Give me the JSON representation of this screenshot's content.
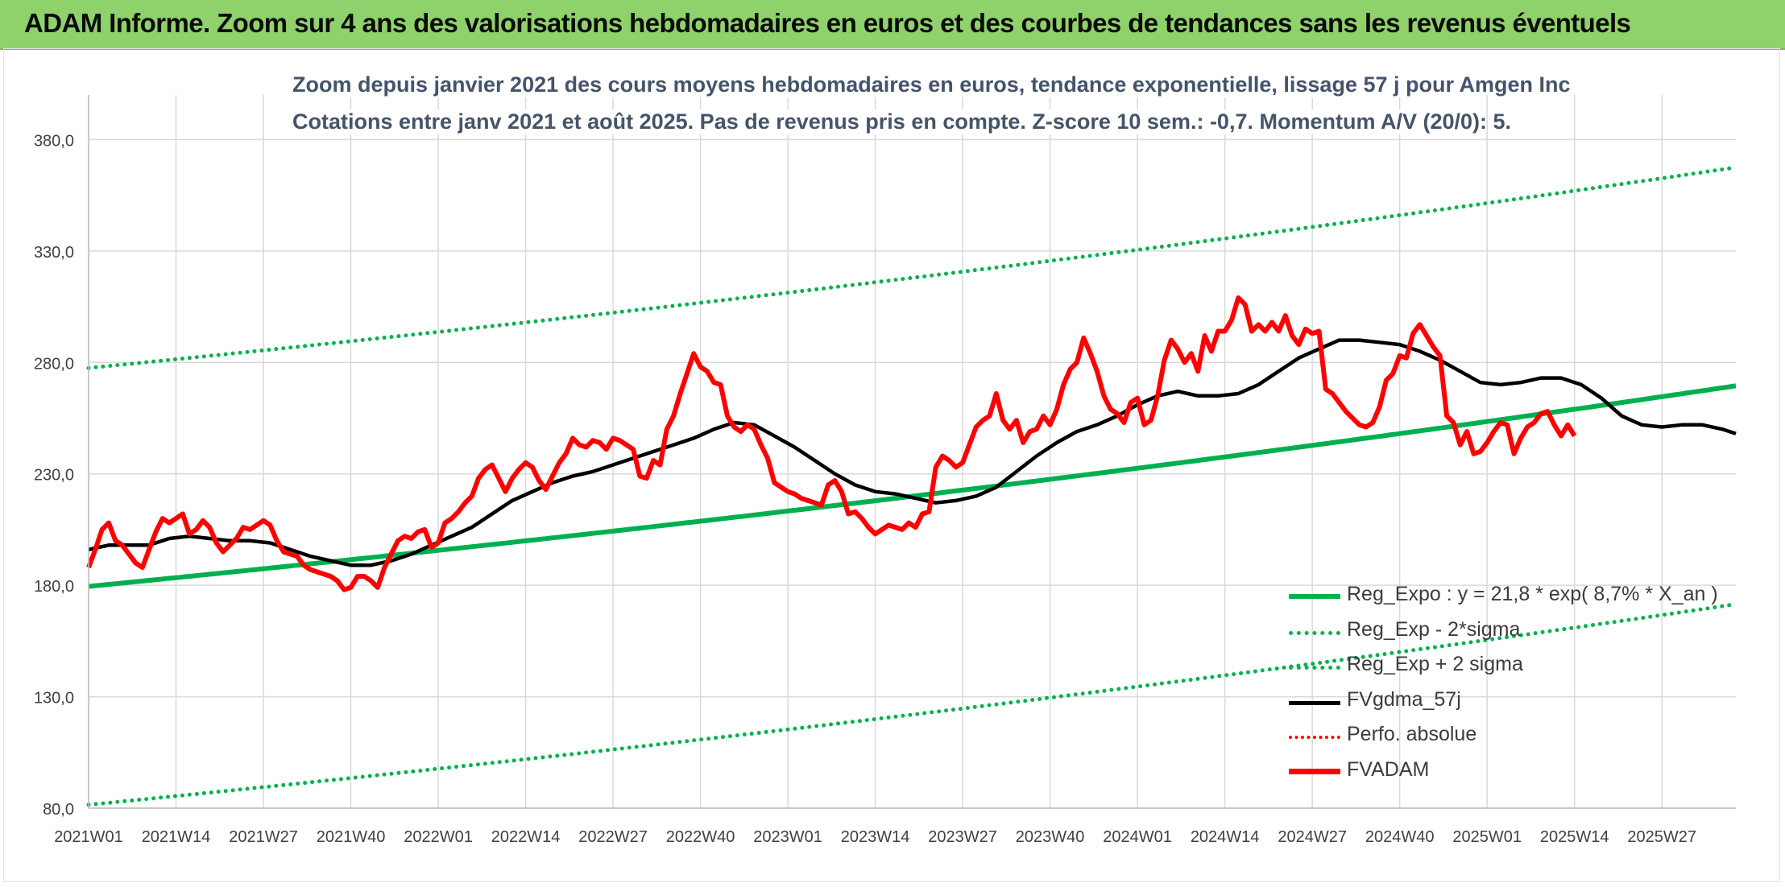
{
  "banner": {
    "title": "ADAM Informe. Zoom sur 4 ans des valorisations hebdomadaires en euros et des courbes de tendances sans les revenus éventuels"
  },
  "chart_data": {
    "type": "line",
    "title": "Zoom depuis janvier 2021 des cours moyens hebdomadaires en euros, tendance exponentielle, lissage 57 j pour Amgen Inc",
    "subtitle": "Cotations entre janv 2021 et août 2025. Pas de revenus pris en compte. Z-score 10 sem.: -0,7. Momentum A/V (20/0): 5.",
    "ylim": [
      80,
      400
    ],
    "y_ticks": [
      "380,0",
      "330,0",
      "280,0",
      "230,0",
      "180,0",
      "130,0",
      "80,0"
    ],
    "y_tick_values": [
      380,
      330,
      280,
      230,
      180,
      130,
      80
    ],
    "x_ticks": [
      "2021W01",
      "2021W14",
      "2021W27",
      "2021W40",
      "2022W01",
      "2022W14",
      "2022W27",
      "2022W40",
      "2023W01",
      "2023W14",
      "2023W27",
      "2023W40",
      "2024W01",
      "2024W14",
      "2024W27",
      "2024W40",
      "2025W01",
      "2025W14",
      "2025W27"
    ],
    "x_tick_weeks": [
      0,
      13,
      26,
      39,
      52,
      65,
      78,
      91,
      104,
      117,
      130,
      143,
      156,
      169,
      182,
      195,
      208,
      221,
      234
    ],
    "weeks_total": 245,
    "grid": true,
    "legend_position": "bottom-right",
    "colors": {
      "reg_expo": "#00b050",
      "sigma": "#00b050",
      "fvgdma": "#000000",
      "perfo": "#ff0000",
      "fvadam": "#ff0000"
    },
    "regression": {
      "formula": "y = 21,8 * exp( 8,7% * X_an )",
      "start": 179.5,
      "end": 269.5,
      "sigma_offset": 98,
      "upper_cap": 400
    },
    "series": [
      {
        "name": "Reg_Expo : y = 21,8 * exp( 8,7% *  X_an )",
        "key": "reg_expo"
      },
      {
        "name": "Reg_Exp - 2*sigma",
        "key": "reg_lower"
      },
      {
        "name": "Reg_Exp + 2 sigma",
        "key": "reg_upper"
      },
      {
        "name": "FVgdma_57j",
        "key": "fvgdma",
        "points": [
          [
            0,
            196
          ],
          [
            3,
            198
          ],
          [
            6,
            198
          ],
          [
            9,
            198
          ],
          [
            12,
            201
          ],
          [
            15,
            202
          ],
          [
            18,
            201
          ],
          [
            21,
            200
          ],
          [
            24,
            200
          ],
          [
            27,
            199
          ],
          [
            30,
            196
          ],
          [
            33,
            193
          ],
          [
            36,
            191
          ],
          [
            39,
            189
          ],
          [
            42,
            189
          ],
          [
            45,
            191
          ],
          [
            48,
            194
          ],
          [
            51,
            198
          ],
          [
            54,
            202
          ],
          [
            57,
            206
          ],
          [
            60,
            212
          ],
          [
            63,
            218
          ],
          [
            66,
            222
          ],
          [
            69,
            226
          ],
          [
            72,
            229
          ],
          [
            75,
            231
          ],
          [
            78,
            234
          ],
          [
            81,
            237
          ],
          [
            84,
            240
          ],
          [
            87,
            243
          ],
          [
            90,
            246
          ],
          [
            93,
            250
          ],
          [
            96,
            253
          ],
          [
            99,
            252
          ],
          [
            102,
            247
          ],
          [
            105,
            242
          ],
          [
            108,
            236
          ],
          [
            111,
            230
          ],
          [
            114,
            225
          ],
          [
            117,
            222
          ],
          [
            120,
            221
          ],
          [
            123,
            219
          ],
          [
            126,
            217
          ],
          [
            129,
            218
          ],
          [
            132,
            220
          ],
          [
            135,
            224
          ],
          [
            138,
            231
          ],
          [
            141,
            238
          ],
          [
            144,
            244
          ],
          [
            147,
            249
          ],
          [
            150,
            252
          ],
          [
            153,
            256
          ],
          [
            156,
            261
          ],
          [
            159,
            265
          ],
          [
            162,
            267
          ],
          [
            165,
            265
          ],
          [
            168,
            265
          ],
          [
            171,
            266
          ],
          [
            174,
            270
          ],
          [
            177,
            276
          ],
          [
            180,
            282
          ],
          [
            183,
            286
          ],
          [
            186,
            290
          ],
          [
            189,
            290
          ],
          [
            192,
            289
          ],
          [
            195,
            288
          ],
          [
            198,
            285
          ],
          [
            201,
            281
          ],
          [
            204,
            276
          ],
          [
            207,
            271
          ],
          [
            210,
            270
          ],
          [
            213,
            271
          ],
          [
            216,
            273
          ],
          [
            219,
            273
          ],
          [
            222,
            270
          ],
          [
            225,
            264
          ],
          [
            228,
            256
          ],
          [
            231,
            252
          ],
          [
            234,
            251
          ],
          [
            237,
            252
          ],
          [
            240,
            252
          ],
          [
            243,
            250
          ],
          [
            245,
            248
          ]
        ]
      },
      {
        "name": "Perfo. absolue",
        "key": "perfo"
      },
      {
        "name": "FVADAM",
        "key": "fvadam",
        "points": [
          [
            0,
            188
          ],
          [
            1,
            196
          ],
          [
            2,
            205
          ],
          [
            3,
            208
          ],
          [
            4,
            200
          ],
          [
            5,
            198
          ],
          [
            6,
            194
          ],
          [
            7,
            190
          ],
          [
            8,
            188
          ],
          [
            9,
            196
          ],
          [
            10,
            204
          ],
          [
            11,
            210
          ],
          [
            12,
            208
          ],
          [
            13,
            210
          ],
          [
            14,
            212
          ],
          [
            15,
            203
          ],
          [
            16,
            205
          ],
          [
            17,
            209
          ],
          [
            18,
            206
          ],
          [
            19,
            199
          ],
          [
            20,
            195
          ],
          [
            21,
            198
          ],
          [
            22,
            201
          ],
          [
            23,
            206
          ],
          [
            24,
            205
          ],
          [
            25,
            207
          ],
          [
            26,
            209
          ],
          [
            27,
            207
          ],
          [
            28,
            200
          ],
          [
            29,
            195
          ],
          [
            30,
            194
          ],
          [
            31,
            193
          ],
          [
            32,
            189
          ],
          [
            33,
            187
          ],
          [
            34,
            186
          ],
          [
            35,
            185
          ],
          [
            36,
            184
          ],
          [
            37,
            182
          ],
          [
            38,
            178
          ],
          [
            39,
            179
          ],
          [
            40,
            184
          ],
          [
            41,
            184
          ],
          [
            42,
            182
          ],
          [
            43,
            179
          ],
          [
            44,
            188
          ],
          [
            45,
            194
          ],
          [
            46,
            200
          ],
          [
            47,
            202
          ],
          [
            48,
            201
          ],
          [
            49,
            204
          ],
          [
            50,
            205
          ],
          [
            51,
            197
          ],
          [
            52,
            199
          ],
          [
            53,
            208
          ],
          [
            54,
            210
          ],
          [
            55,
            213
          ],
          [
            56,
            217
          ],
          [
            57,
            220
          ],
          [
            58,
            228
          ],
          [
            59,
            232
          ],
          [
            60,
            234
          ],
          [
            61,
            228
          ],
          [
            62,
            222
          ],
          [
            63,
            228
          ],
          [
            64,
            232
          ],
          [
            65,
            235
          ],
          [
            66,
            233
          ],
          [
            67,
            227
          ],
          [
            68,
            223
          ],
          [
            69,
            229
          ],
          [
            70,
            235
          ],
          [
            71,
            239
          ],
          [
            72,
            246
          ],
          [
            73,
            243
          ],
          [
            74,
            242
          ],
          [
            75,
            245
          ],
          [
            76,
            244
          ],
          [
            77,
            241
          ],
          [
            78,
            246
          ],
          [
            79,
            245
          ],
          [
            80,
            243
          ],
          [
            81,
            241
          ],
          [
            82,
            229
          ],
          [
            83,
            228
          ],
          [
            84,
            236
          ],
          [
            85,
            234
          ],
          [
            86,
            250
          ],
          [
            87,
            256
          ],
          [
            88,
            266
          ],
          [
            89,
            275
          ],
          [
            90,
            284
          ],
          [
            91,
            278
          ],
          [
            92,
            276
          ],
          [
            93,
            271
          ],
          [
            94,
            270
          ],
          [
            95,
            256
          ],
          [
            96,
            251
          ],
          [
            97,
            249
          ],
          [
            98,
            252
          ],
          [
            99,
            250
          ],
          [
            100,
            243
          ],
          [
            101,
            237
          ],
          [
            102,
            226
          ],
          [
            103,
            224
          ],
          [
            104,
            222
          ],
          [
            105,
            221
          ],
          [
            106,
            219
          ],
          [
            107,
            218
          ],
          [
            108,
            217
          ],
          [
            109,
            216
          ],
          [
            110,
            225
          ],
          [
            111,
            227
          ],
          [
            112,
            222
          ],
          [
            113,
            212
          ],
          [
            114,
            213
          ],
          [
            115,
            210
          ],
          [
            116,
            206
          ],
          [
            117,
            203
          ],
          [
            118,
            205
          ],
          [
            119,
            207
          ],
          [
            120,
            206
          ],
          [
            121,
            205
          ],
          [
            122,
            208
          ],
          [
            123,
            206
          ],
          [
            124,
            212
          ],
          [
            125,
            213
          ],
          [
            126,
            233
          ],
          [
            127,
            238
          ],
          [
            128,
            236
          ],
          [
            129,
            233
          ],
          [
            130,
            235
          ],
          [
            131,
            243
          ],
          [
            132,
            251
          ],
          [
            133,
            254
          ],
          [
            134,
            256
          ],
          [
            135,
            266
          ],
          [
            136,
            254
          ],
          [
            137,
            250
          ],
          [
            138,
            254
          ],
          [
            139,
            244
          ],
          [
            140,
            249
          ],
          [
            141,
            250
          ],
          [
            142,
            256
          ],
          [
            143,
            252
          ],
          [
            144,
            259
          ],
          [
            145,
            270
          ],
          [
            146,
            277
          ],
          [
            147,
            280
          ],
          [
            148,
            291
          ],
          [
            149,
            284
          ],
          [
            150,
            276
          ],
          [
            151,
            265
          ],
          [
            152,
            259
          ],
          [
            153,
            257
          ],
          [
            154,
            253
          ],
          [
            155,
            262
          ],
          [
            156,
            264
          ],
          [
            157,
            252
          ],
          [
            158,
            254
          ],
          [
            159,
            265
          ],
          [
            160,
            281
          ],
          [
            161,
            290
          ],
          [
            162,
            286
          ],
          [
            163,
            280
          ],
          [
            164,
            284
          ],
          [
            165,
            276
          ],
          [
            166,
            292
          ],
          [
            167,
            285
          ],
          [
            168,
            294
          ],
          [
            169,
            294
          ],
          [
            170,
            299
          ],
          [
            171,
            309
          ],
          [
            172,
            306
          ],
          [
            173,
            294
          ],
          [
            174,
            297
          ],
          [
            175,
            294
          ],
          [
            176,
            298
          ],
          [
            177,
            294
          ],
          [
            178,
            301
          ],
          [
            179,
            292
          ],
          [
            180,
            288
          ],
          [
            181,
            295
          ],
          [
            182,
            293
          ],
          [
            183,
            294
          ],
          [
            184,
            268
          ],
          [
            185,
            266
          ],
          [
            186,
            262
          ],
          [
            187,
            258
          ],
          [
            188,
            255
          ],
          [
            189,
            252
          ],
          [
            190,
            251
          ],
          [
            191,
            253
          ],
          [
            192,
            260
          ],
          [
            193,
            272
          ],
          [
            194,
            275
          ],
          [
            195,
            283
          ],
          [
            196,
            282
          ],
          [
            197,
            293
          ],
          [
            198,
            297
          ],
          [
            199,
            292
          ],
          [
            200,
            287
          ],
          [
            201,
            283
          ],
          [
            202,
            256
          ],
          [
            203,
            253
          ],
          [
            204,
            243
          ],
          [
            205,
            249
          ],
          [
            206,
            239
          ],
          [
            207,
            240
          ],
          [
            208,
            244
          ],
          [
            209,
            249
          ],
          [
            210,
            253
          ],
          [
            211,
            252
          ],
          [
            212,
            239
          ],
          [
            213,
            246
          ],
          [
            214,
            251
          ],
          [
            215,
            253
          ],
          [
            216,
            257
          ],
          [
            217,
            258
          ],
          [
            218,
            252
          ],
          [
            219,
            247
          ],
          [
            220,
            252
          ],
          [
            221,
            247
          ]
        ]
      }
    ]
  }
}
